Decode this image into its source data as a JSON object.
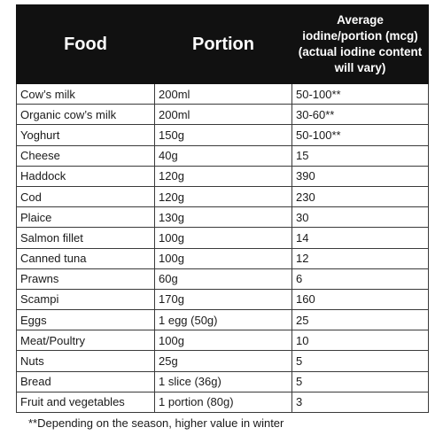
{
  "table": {
    "headers": {
      "food": "Food",
      "portion": "Portion",
      "iodine": "Average iodine/portion (mcg) (actual iodine content will vary)"
    },
    "rows": [
      {
        "food": "Cow’s milk",
        "portion": "200ml",
        "iodine": "50-100**"
      },
      {
        "food": "Organic cow’s milk",
        "portion": "200ml",
        "iodine": "30-60**"
      },
      {
        "food": "Yoghurt",
        "portion": "150g",
        "iodine": "50-100**"
      },
      {
        "food": "Cheese",
        "portion": "40g",
        "iodine": "15"
      },
      {
        "food": "Haddock",
        "portion": "120g",
        "iodine": "390"
      },
      {
        "food": "Cod",
        "portion": "120g",
        "iodine": "230"
      },
      {
        "food": "Plaice",
        "portion": "130g",
        "iodine": "30"
      },
      {
        "food": "Salmon fillet",
        "portion": "100g",
        "iodine": "14"
      },
      {
        "food": "Canned tuna",
        "portion": "100g",
        "iodine": "12"
      },
      {
        "food": "Prawns",
        "portion": "60g",
        "iodine": "6"
      },
      {
        "food": "Scampi",
        "portion": "170g",
        "iodine": "160"
      },
      {
        "food": "Eggs",
        "portion": "1 egg (50g)",
        "iodine": "25"
      },
      {
        "food": "Meat/Poultry",
        "portion": "100g",
        "iodine": "10"
      },
      {
        "food": "Nuts",
        "portion": "25g",
        "iodine": "5"
      },
      {
        "food": "Bread",
        "portion": "1 slice (36g)",
        "iodine": "5"
      },
      {
        "food": "Fruit and vegetables",
        "portion": "1 portion (80g)",
        "iodine": "3"
      }
    ]
  },
  "footnote": "**Depending on the season, higher value in winter",
  "colors": {
    "header_background": "#111111",
    "header_text": "#ffffff",
    "border": "#3a3a3a",
    "text": "#1a1a1a"
  }
}
